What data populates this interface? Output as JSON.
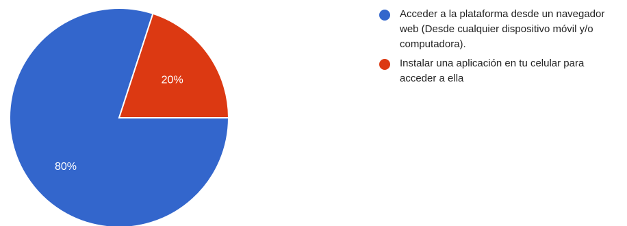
{
  "chart_data": {
    "type": "pie",
    "title": "",
    "slices": [
      {
        "label": "Acceder a la plataforma desde un navegador web (Desde cualquier dispositivo móvil y/o computadora).",
        "value": 80,
        "display": "80%",
        "color": "#3366cc"
      },
      {
        "label": "Instalar una aplicación en tu celular para acceder a ella",
        "value": 20,
        "display": "20%",
        "color": "#dc3912"
      }
    ],
    "legend_position": "right"
  }
}
